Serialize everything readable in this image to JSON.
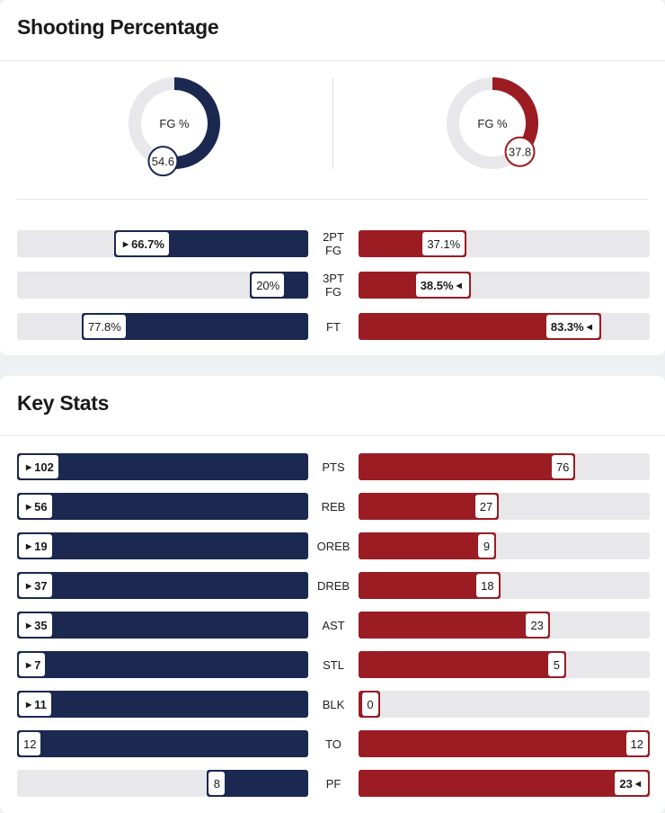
{
  "colors": {
    "home": "#1b2850",
    "away": "#9b1c23",
    "track": "#e8e8ea"
  },
  "shooting": {
    "title": "Shooting Percentage",
    "donut_label": "FG %",
    "home_fg": "54.6",
    "away_fg": "37.8",
    "home_fg_value": 54.6,
    "away_fg_value": 37.8,
    "rows": [
      {
        "label": "2PT FG",
        "home": "66.7%",
        "away": "37.1%",
        "home_value": 66.7,
        "away_value": 37.1,
        "winner": "home"
      },
      {
        "label": "3PT FG",
        "home": "20%",
        "away": "38.5%",
        "home_value": 20,
        "away_value": 38.5,
        "winner": "away"
      },
      {
        "label": "FT",
        "home": "77.8%",
        "away": "83.3%",
        "home_value": 77.8,
        "away_value": 83.3,
        "winner": "away"
      }
    ]
  },
  "key_stats": {
    "title": "Key Stats",
    "rows": [
      {
        "label": "PTS",
        "home": "102",
        "away": "76",
        "home_value": 102,
        "away_value": 76,
        "winner": "home"
      },
      {
        "label": "REB",
        "home": "56",
        "away": "27",
        "home_value": 56,
        "away_value": 27,
        "winner": "home"
      },
      {
        "label": "OREB",
        "home": "19",
        "away": "9",
        "home_value": 19,
        "away_value": 9,
        "winner": "home"
      },
      {
        "label": "DREB",
        "home": "37",
        "away": "18",
        "home_value": 37,
        "away_value": 18,
        "winner": "home"
      },
      {
        "label": "AST",
        "home": "35",
        "away": "23",
        "home_value": 35,
        "away_value": 23,
        "winner": "home"
      },
      {
        "label": "STL",
        "home": "7",
        "away": "5",
        "home_value": 7,
        "away_value": 5,
        "winner": "home"
      },
      {
        "label": "BLK",
        "home": "11",
        "away": "0",
        "home_value": 11,
        "away_value": 0,
        "winner": "home"
      },
      {
        "label": "TO",
        "home": "12",
        "away": "12",
        "home_value": 12,
        "away_value": 12,
        "winner": "none"
      },
      {
        "label": "PF",
        "home": "8",
        "away": "23",
        "home_value": 8,
        "away_value": 23,
        "winner": "away"
      }
    ]
  }
}
